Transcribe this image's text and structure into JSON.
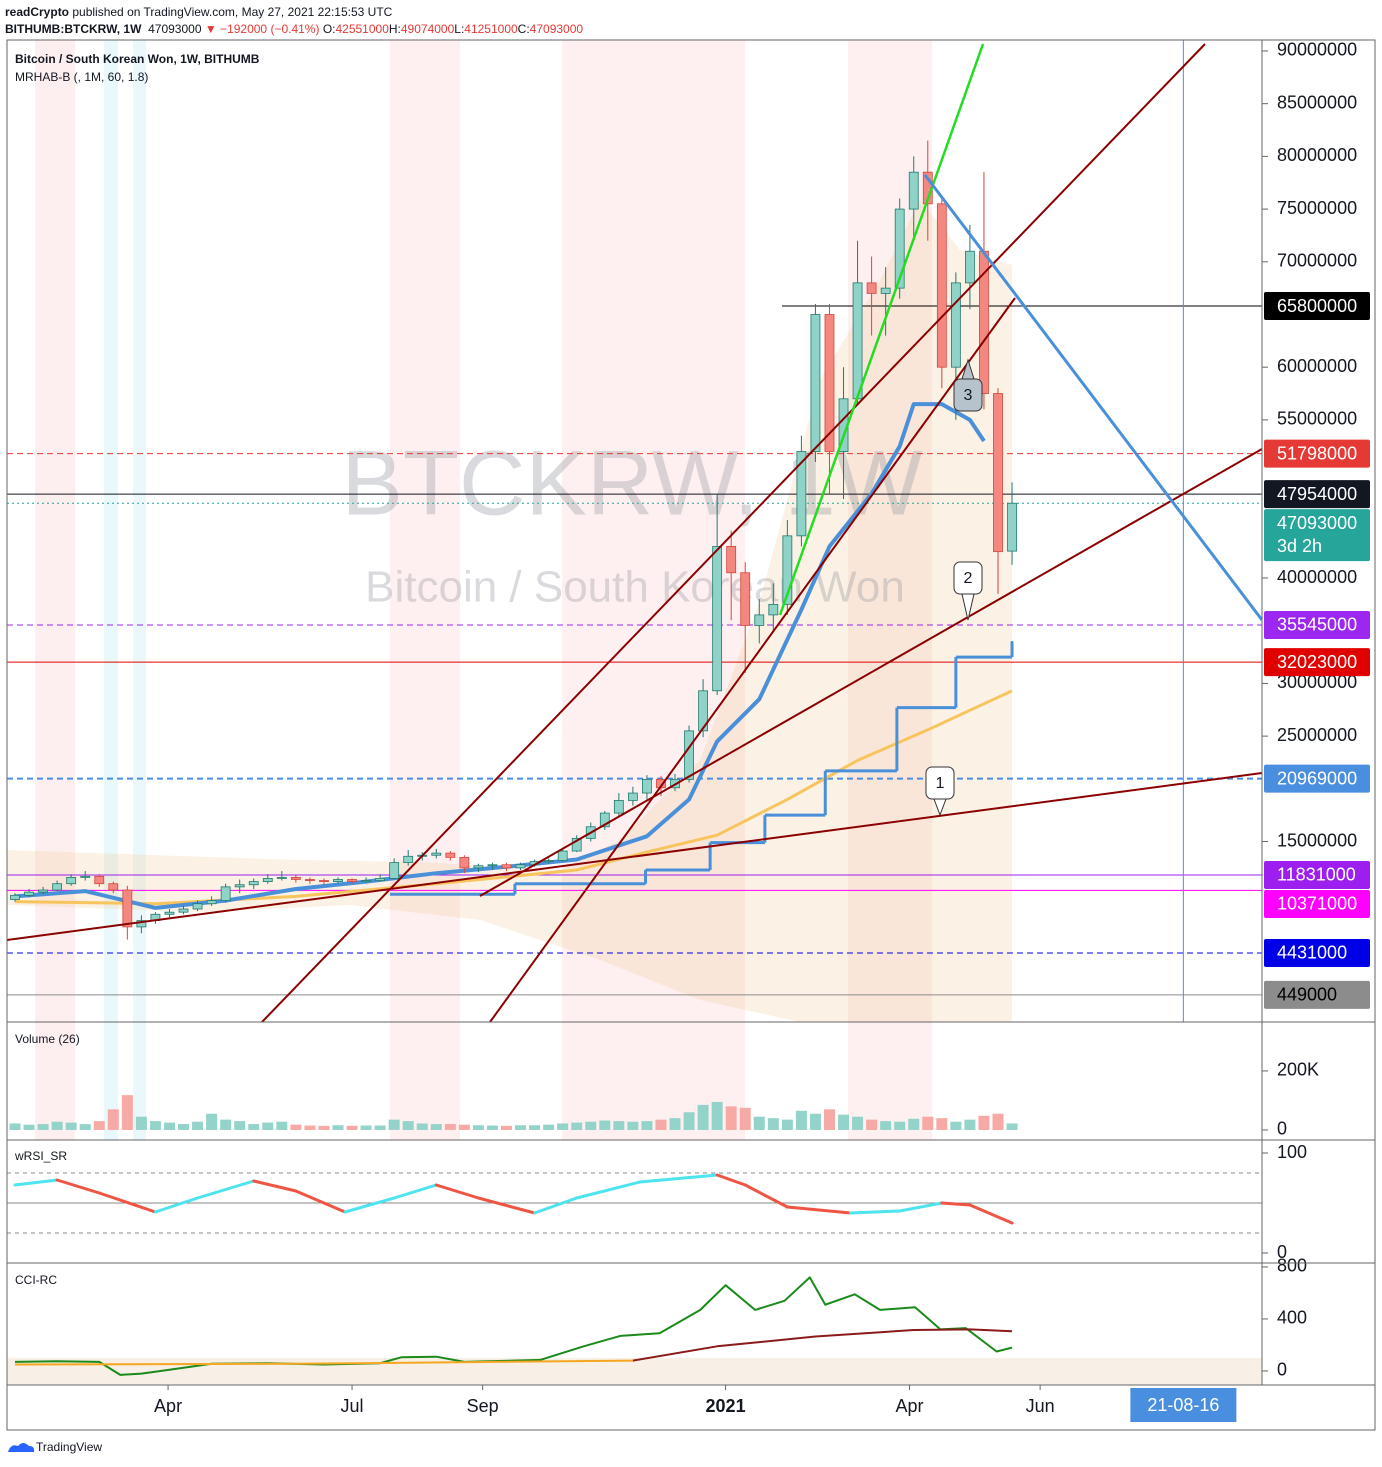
{
  "header": {
    "publisher": "readCrypto",
    "published": "published on TradingView.com, May 27, 2021 22:15:53 UTC",
    "symbol": "BITHUMB:BTCKRW, 1W",
    "last": 47093000,
    "change": "▼ −192000 (−0.41%)",
    "ohlc": [
      {
        "label": "O:",
        "value": 42551000
      },
      {
        "label": "H:",
        "value": 49074000
      },
      {
        "label": "L:",
        "value": 41251000
      },
      {
        "label": "C:",
        "value": 47093000
      }
    ]
  },
  "footer": "TradingView",
  "chart_data": [
    {
      "type": "candlestick",
      "title": "Bitcoin / South Korean Won, 1W, BITHUMB",
      "subtitle": "MRHAB-B (, 1M, 60, 1.8)",
      "watermark_title": "BTCKRW, 1W",
      "watermark_subtitle": "Bitcoin / South Korean Won",
      "up_color": "#8ed2c8",
      "down_color": "#f4877f",
      "up_line": "#1f7a6e",
      "down_line": "#d6453d",
      "open": [
        9500000,
        9900000,
        10200000,
        10400000,
        11000000,
        11600000,
        11700000,
        11000000,
        10400000,
        6900000,
        7500000,
        8100000,
        8300000,
        8600000,
        9100000,
        9400000,
        10700000,
        10900000,
        11200000,
        11500000,
        11600000,
        11400000,
        11300000,
        11200000,
        11400000,
        11200000,
        11300000,
        11500000,
        13000000,
        13600000,
        13700000,
        13900000,
        13500000,
        12500000,
        12700000,
        12800000,
        12500000,
        12800000,
        13100000,
        13200000,
        14100000,
        15300000,
        16400000,
        17700000,
        18900000,
        19600000,
        20900000,
        20100000,
        20900000,
        25500000,
        29300000,
        43000000,
        40500000,
        35500000,
        36500000,
        37500000,
        44000000,
        52000000,
        65000000,
        52000000,
        57000000,
        68000000,
        67000000,
        67500000,
        75000000,
        78500000,
        75500000,
        60000000,
        68000000,
        71000000,
        57500000,
        42551000
      ],
      "high": [
        10100000,
        10500000,
        10700000,
        11300000,
        11900000,
        12200000,
        11900000,
        11200000,
        10800000,
        8000000,
        8300000,
        8600000,
        8900000,
        9400000,
        9800000,
        11000000,
        11400000,
        11500000,
        11900000,
        12200000,
        11800000,
        11600000,
        11500000,
        11600000,
        11500000,
        11600000,
        11900000,
        13400000,
        14200000,
        14000000,
        14300000,
        14100000,
        13700000,
        12900000,
        13000000,
        13000000,
        13000000,
        13300000,
        13400000,
        14400000,
        15600000,
        16800000,
        17900000,
        19600000,
        20200000,
        21300000,
        21200000,
        21400000,
        26000000,
        30400000,
        47900000,
        44500000,
        41500000,
        38000000,
        39500000,
        45500000,
        53500000,
        66000000,
        66000000,
        60000000,
        72000000,
        70500000,
        69500000,
        76000000,
        80000000,
        81500000,
        76000000,
        69000000,
        73500000,
        78500000,
        58000000,
        49074000
      ],
      "low": [
        9300000,
        9700000,
        10000000,
        10300000,
        10800000,
        11300000,
        10700000,
        10100000,
        5700000,
        6300000,
        7200000,
        7800000,
        8100000,
        8400000,
        8900000,
        9200000,
        10100000,
        10500000,
        11000000,
        11300000,
        11100000,
        11000000,
        10900000,
        11000000,
        11000000,
        11100000,
        11200000,
        11400000,
        12700000,
        13200000,
        13400000,
        13200000,
        12000000,
        12100000,
        12300000,
        12200000,
        12300000,
        12600000,
        12900000,
        13100000,
        14000000,
        15000000,
        16100000,
        17300000,
        18400000,
        19000000,
        19300000,
        19800000,
        20600000,
        24900000,
        28900000,
        36000000,
        31000000,
        33800000,
        35000000,
        36500000,
        43000000,
        51000000,
        48000000,
        47500000,
        56500000,
        63000000,
        63000000,
        66500000,
        72000000,
        72000000,
        58000000,
        55000000,
        65500000,
        56000000,
        38500000,
        41251000
      ],
      "close": [
        9900000,
        10200000,
        10400000,
        11000000,
        11600000,
        11700000,
        11000000,
        10400000,
        6900000,
        7500000,
        8100000,
        8300000,
        8600000,
        9100000,
        9400000,
        10700000,
        10900000,
        11200000,
        11500000,
        11600000,
        11400000,
        11300000,
        11200000,
        11400000,
        11200000,
        11300000,
        11500000,
        13000000,
        13600000,
        13700000,
        13900000,
        13500000,
        12500000,
        12700000,
        12800000,
        12500000,
        12800000,
        13100000,
        13200000,
        14100000,
        15300000,
        16400000,
        17700000,
        18900000,
        19600000,
        20900000,
        20100000,
        20900000,
        25500000,
        29300000,
        43000000,
        40500000,
        35500000,
        36500000,
        37500000,
        44000000,
        52000000,
        65000000,
        52000000,
        57000000,
        68000000,
        67000000,
        67500000,
        75000000,
        78500000,
        75500000,
        60000000,
        68000000,
        71000000,
        57500000,
        42500000,
        47093000
      ],
      "series": [
        {
          "color": "#f7c45e",
          "width": 3,
          "x": [
            0,
            10,
            20,
            30,
            40,
            45,
            50,
            55,
            60,
            65,
            71
          ],
          "values": [
            9300000,
            9100000,
            9800000,
            11000000,
            12300000,
            14000000,
            15600000,
            19000000,
            22700000,
            25600000,
            29300000
          ]
        },
        {
          "color": "#4a90d9",
          "width": 4,
          "x": [
            0,
            5,
            10,
            15,
            20,
            25,
            30,
            35,
            40,
            45,
            48,
            50,
            53,
            56,
            58,
            61,
            63,
            64,
            66,
            68,
            69
          ],
          "values": [
            9800000,
            10300000,
            8700000,
            9400000,
            10500000,
            11200000,
            12000000,
            12600000,
            13300000,
            15500000,
            19000000,
            24500000,
            28500000,
            37000000,
            43000000,
            48000000,
            52500000,
            56500000,
            56500000,
            55000000,
            53000000
          ]
        },
        {
          "color": "#4a90d9",
          "width": 3,
          "step": true,
          "x": [
            26.7,
            35.6,
            44.9,
            49.5,
            53.4,
            57.7,
            62.8,
            67,
            71
          ],
          "values": [
            10000000,
            11000000,
            12300000,
            14900000,
            17500000,
            21700000,
            27700000,
            32500000,
            33900000
          ]
        }
      ],
      "levels": [
        {
          "value": 65800000,
          "color": "#000000",
          "text_color": "#ffffff",
          "style": "solid",
          "width": 1
        },
        {
          "value": 51798000,
          "color": "#e53935",
          "text_color": "#ffffff",
          "style": "dashed",
          "width": 1
        },
        {
          "value": 47954000,
          "color": "#131722",
          "text_color": "#ffffff",
          "style": "solid",
          "width": 1
        },
        {
          "value": 47093000,
          "color": "#26a69a",
          "text_color": "#ffffff",
          "style": "dotted",
          "width": 1,
          "countdown": "3d 2h"
        },
        {
          "value": 35545000,
          "color": "#9c27f0",
          "text_color": "#ffffff",
          "style": "dashed",
          "width": 1
        },
        {
          "value": 32023000,
          "color": "#e00000",
          "text_color": "#ffffff",
          "style": "solid",
          "width": 1
        },
        {
          "value": 20969000,
          "color": "#4a8ee0",
          "text_color": "#ffffff",
          "style": "dashed",
          "width": 2
        },
        {
          "value": 11831000,
          "color": "#9c1ff0",
          "text_color": "#ffffff",
          "style": "solid",
          "width": 1
        },
        {
          "value": 10371000,
          "color": "#ff00ff",
          "text_color": "#ffffff",
          "style": "solid",
          "width": 1
        },
        {
          "value": 4431000,
          "color": "#0000e6",
          "text_color": "#ffffff",
          "style": "dashed",
          "width": 1
        },
        {
          "value": 449000,
          "color": "#8c8c8c",
          "text_color": "#000000",
          "style": "solid",
          "width": 1
        }
      ],
      "annotations": [
        "1",
        "2",
        "3"
      ],
      "xlim": [
        -0.57,
        88.8
      ],
      "xticks": [
        {
          "value": 10.9,
          "label": "Apr"
        },
        {
          "value": 24.0,
          "label": "Jul"
        },
        {
          "value": 33.3,
          "label": "Sep"
        },
        {
          "value": 50.6,
          "label": "2021"
        },
        {
          "value": 63.7,
          "label": "Apr"
        },
        {
          "value": 73.0,
          "label": "Jun"
        }
      ],
      "crosshair": {
        "value": 83.2,
        "label": "21-08-16"
      },
      "ylim": [
        -2120000,
        91040000
      ],
      "yticks": [
        15000000,
        25000000,
        30000000,
        40000000,
        55000000,
        60000000,
        70000000,
        75000000,
        80000000,
        85000000,
        90000000
      ]
    },
    {
      "type": "bar",
      "title": "Volume (26)",
      "up_color": "#94d3ca",
      "down_color": "#f7aaa5",
      "values": [
        22000,
        18000,
        20000,
        28000,
        25000,
        20000,
        30000,
        70000,
        118000,
        45000,
        30000,
        25000,
        20000,
        28000,
        55000,
        35000,
        30000,
        20000,
        25000,
        28000,
        18000,
        15000,
        14000,
        16000,
        14000,
        15000,
        15000,
        35000,
        30000,
        22000,
        20000,
        20000,
        18000,
        16000,
        15000,
        14000,
        16000,
        16000,
        18000,
        22000,
        25000,
        28000,
        32000,
        30000,
        28000,
        30000,
        35000,
        40000,
        60000,
        85000,
        95000,
        80000,
        75000,
        45000,
        40000,
        35000,
        65000,
        55000,
        70000,
        52000,
        45000,
        35000,
        30000,
        28000,
        38000,
        45000,
        40000,
        28000,
        35000,
        48000,
        55000,
        22000
      ],
      "ylim": [
        -34000,
        359000
      ],
      "yticks": [
        0,
        {
          "value": 200000,
          "label": "200K"
        }
      ]
    },
    {
      "type": "line",
      "title": "wRSI_SR",
      "levels": [
        80,
        50,
        20
      ],
      "series": [
        {
          "up_color": "#4de3ef",
          "down_color": "#ee5544",
          "width": 3,
          "x": [
            0,
            3,
            6,
            10,
            13,
            17,
            20,
            23.5,
            27,
            30,
            33,
            37,
            40,
            44.5,
            50,
            52,
            55,
            59.5,
            63,
            66,
            68,
            71
          ],
          "values": [
            68,
            73,
            60,
            41,
            55,
            72,
            62,
            41,
            55,
            68,
            55,
            40,
            55,
            71,
            78,
            68,
            46,
            40,
            42,
            50,
            48,
            30
          ]
        }
      ],
      "ylim": [
        -10,
        112
      ],
      "yticks": [
        0,
        100
      ]
    },
    {
      "type": "line",
      "title": "CCI-RC",
      "series": [
        {
          "color": "#1a8a1a",
          "width": 2,
          "x": [
            0,
            3,
            6,
            7.5,
            9,
            11,
            14,
            18,
            22,
            26,
            27.5,
            30,
            32,
            37.4,
            40.5,
            43.1,
            45.9,
            48.8,
            50.6,
            52.7,
            54.8,
            56.6,
            57.7,
            59.8,
            61.6,
            64.1,
            65.9,
            67.7,
            69.9,
            71
          ],
          "values": [
            70,
            75,
            70,
            -30,
            -20,
            10,
            55,
            60,
            50,
            60,
            105,
            110,
            70,
            85,
            190,
            270,
            290,
            470,
            660,
            470,
            540,
            720,
            510,
            590,
            470,
            490,
            320,
            330,
            150,
            180
          ]
        },
        {
          "color": "#f5a623",
          "width": 2,
          "x": [
            0,
            20,
            44
          ],
          "values": [
            50,
            55,
            80
          ]
        },
        {
          "color": "#8b1a1a",
          "width": 2,
          "x": [
            44,
            50,
            57,
            64,
            68,
            71
          ],
          "values": [
            80,
            190,
            265,
            315,
            320,
            305
          ]
        }
      ],
      "ylim": [
        -108,
        815
      ],
      "yticks": [
        0,
        400,
        800
      ]
    }
  ]
}
